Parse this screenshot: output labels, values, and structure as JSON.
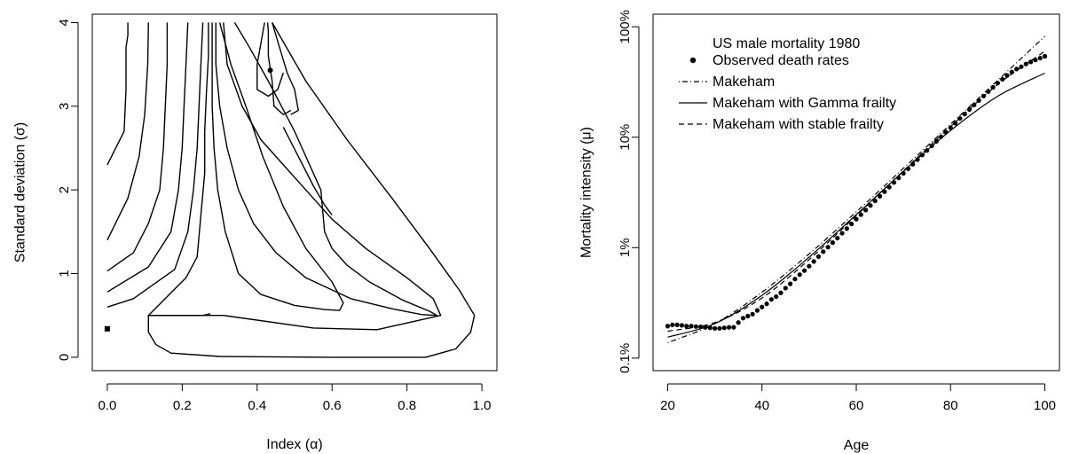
{
  "chart_data": [
    {
      "type": "contour",
      "title": "",
      "xlabel": "Index (α)",
      "ylabel": "Standard deviation (σ)",
      "xlim": [
        -0.04,
        1.04
      ],
      "ylim": [
        -0.16,
        4.1
      ],
      "x_ticks": [
        {
          "value": 0.0,
          "label": "0.0"
        },
        {
          "value": 0.2,
          "label": "0.2"
        },
        {
          "value": 0.4,
          "label": "0.4"
        },
        {
          "value": 0.6,
          "label": "0.6"
        },
        {
          "value": 0.8,
          "label": "0.8"
        },
        {
          "value": 1.0,
          "label": "1.0"
        }
      ],
      "y_ticks": [
        {
          "value": 0,
          "label": "0"
        },
        {
          "value": 1,
          "label": "1"
        },
        {
          "value": 2,
          "label": "2"
        },
        {
          "value": 3,
          "label": "3"
        },
        {
          "value": 4,
          "label": "4"
        }
      ],
      "points": [
        {
          "x": 0.435,
          "y": 3.43,
          "marker": "circle"
        },
        {
          "x": 0.0,
          "y": 0.34,
          "marker": "square"
        }
      ],
      "contours": [
        [
          [
            0.055,
            4.0
          ],
          [
            0.055,
            3.85
          ],
          [
            0.05,
            3.7
          ],
          [
            0.05,
            3.2
          ],
          [
            0.045,
            2.7
          ],
          [
            0.0,
            2.3
          ]
        ],
        [
          [
            0.11,
            4.0
          ],
          [
            0.108,
            3.5
          ],
          [
            0.1,
            2.9
          ],
          [
            0.085,
            2.4
          ],
          [
            0.055,
            1.9
          ],
          [
            0.0,
            1.4
          ]
        ],
        [
          [
            0.16,
            4.0
          ],
          [
            0.16,
            3.5
          ],
          [
            0.155,
            3.0
          ],
          [
            0.15,
            2.5
          ],
          [
            0.14,
            2.0
          ],
          [
            0.11,
            1.6
          ],
          [
            0.07,
            1.25
          ],
          [
            0.0,
            1.03
          ]
        ],
        [
          [
            0.215,
            4.0
          ],
          [
            0.21,
            3.5
          ],
          [
            0.205,
            3.0
          ],
          [
            0.2,
            2.5
          ],
          [
            0.19,
            2.0
          ],
          [
            0.17,
            1.5
          ],
          [
            0.11,
            1.08
          ],
          [
            0.0,
            0.78
          ]
        ],
        [
          [
            0.255,
            4.0
          ],
          [
            0.25,
            3.5
          ],
          [
            0.245,
            3.0
          ],
          [
            0.24,
            2.5
          ],
          [
            0.23,
            2.0
          ],
          [
            0.215,
            1.5
          ],
          [
            0.18,
            1.05
          ],
          [
            0.07,
            0.7
          ],
          [
            0.0,
            0.6
          ]
        ],
        [
          [
            0.27,
            4.0
          ],
          [
            0.27,
            3.6
          ],
          [
            0.265,
            3.2
          ],
          [
            0.26,
            2.7
          ],
          [
            0.26,
            2.2
          ],
          [
            0.25,
            1.7
          ],
          [
            0.24,
            1.2
          ],
          [
            0.21,
            0.95
          ],
          [
            0.11,
            0.5
          ],
          [
            0.255,
            0.5
          ],
          [
            0.275,
            0.52
          ]
        ],
        [
          [
            0.28,
            4.0
          ],
          [
            0.28,
            3.5
          ],
          [
            0.28,
            3.0
          ],
          [
            0.285,
            2.5
          ],
          [
            0.295,
            2.0
          ],
          [
            0.315,
            1.5
          ],
          [
            0.35,
            1.0
          ],
          [
            0.41,
            0.75
          ],
          [
            0.5,
            0.62
          ],
          [
            0.58,
            0.57
          ],
          [
            0.62,
            0.56
          ],
          [
            0.63,
            0.65
          ],
          [
            0.6,
            0.9
          ],
          [
            0.53,
            1.3
          ],
          [
            0.47,
            1.8
          ],
          [
            0.415,
            2.4
          ],
          [
            0.37,
            3.0
          ],
          [
            0.33,
            3.5
          ],
          [
            0.3,
            4.0
          ]
        ],
        [
          [
            0.29,
            4.0
          ],
          [
            0.29,
            3.5
          ],
          [
            0.3,
            3.0
          ],
          [
            0.32,
            2.5
          ],
          [
            0.35,
            2.0
          ],
          [
            0.39,
            1.6
          ],
          [
            0.45,
            1.25
          ],
          [
            0.53,
            0.95
          ],
          [
            0.65,
            0.7
          ],
          [
            0.76,
            0.58
          ],
          [
            0.84,
            0.51
          ],
          [
            0.88,
            0.5
          ],
          [
            0.86,
            0.55
          ],
          [
            0.79,
            0.68
          ],
          [
            0.7,
            0.9
          ],
          [
            0.64,
            1.1
          ],
          [
            0.6,
            1.3
          ],
          [
            0.58,
            1.5
          ],
          [
            0.57,
            2.0
          ],
          [
            0.5,
            2.7
          ],
          [
            0.43,
            3.3
          ],
          [
            0.38,
            3.7
          ],
          [
            0.34,
            4.0
          ]
        ],
        [
          [
            0.31,
            4.0
          ],
          [
            0.32,
            3.5
          ],
          [
            0.36,
            3.0
          ],
          [
            0.41,
            2.6
          ],
          [
            0.47,
            2.3
          ],
          [
            0.53,
            2.0
          ],
          [
            0.6,
            1.65
          ],
          [
            0.69,
            1.3
          ],
          [
            0.8,
            0.95
          ],
          [
            0.87,
            0.7
          ],
          [
            0.89,
            0.5
          ],
          [
            0.72,
            0.33
          ],
          [
            0.55,
            0.35
          ],
          [
            0.31,
            0.5
          ],
          [
            0.18,
            0.5
          ],
          [
            0.11,
            0.5
          ],
          [
            0.11,
            0.3
          ],
          [
            0.13,
            0.15
          ],
          [
            0.17,
            0.05
          ],
          [
            0.3,
            0.01
          ],
          [
            0.6,
            0.0
          ],
          [
            0.85,
            0.0
          ],
          [
            0.93,
            0.1
          ],
          [
            0.97,
            0.3
          ],
          [
            0.98,
            0.5
          ],
          [
            0.94,
            0.8
          ],
          [
            0.86,
            1.3
          ],
          [
            0.76,
            1.9
          ],
          [
            0.64,
            2.6
          ],
          [
            0.53,
            3.3
          ],
          [
            0.44,
            4.0
          ]
        ],
        [
          [
            0.47,
            3.4
          ],
          [
            0.455,
            3.2
          ],
          [
            0.43,
            3.12
          ],
          [
            0.4,
            3.2
          ],
          [
            0.4,
            3.5
          ],
          [
            0.41,
            3.75
          ],
          [
            0.42,
            4.0
          ]
        ],
        [
          [
            0.49,
            2.95
          ],
          [
            0.47,
            2.9
          ],
          [
            0.445,
            3.0
          ],
          [
            0.44,
            3.3
          ],
          [
            0.43,
            3.6
          ],
          [
            0.43,
            3.9
          ],
          [
            0.428,
            4.0
          ]
        ],
        [
          [
            0.44,
            4.0
          ],
          [
            0.46,
            3.7
          ],
          [
            0.48,
            3.4
          ],
          [
            0.5,
            3.2
          ],
          [
            0.51,
            2.95
          ],
          [
            0.49,
            2.9
          ]
        ],
        [
          [
            0.6,
            1.7
          ],
          [
            0.58,
            1.82
          ],
          [
            0.55,
            2.05
          ],
          [
            0.51,
            2.4
          ],
          [
            0.47,
            2.75
          ]
        ]
      ]
    },
    {
      "type": "line",
      "title": "",
      "xlabel": "Age",
      "ylabel": "Mortality intensity (μ)",
      "y_scale": "log",
      "xlim": [
        16.9,
        103.1
      ],
      "ylim": [
        0.00077,
        1.3
      ],
      "x_ticks": [
        {
          "value": 20,
          "label": "20"
        },
        {
          "value": 40,
          "label": "40"
        },
        {
          "value": 60,
          "label": "60"
        },
        {
          "value": 80,
          "label": "80"
        },
        {
          "value": 100,
          "label": "100"
        }
      ],
      "y_ticks": [
        {
          "value": 0.001,
          "label": "0.1%"
        },
        {
          "value": 0.01,
          "label": "1%"
        },
        {
          "value": 0.1,
          "label": "10%"
        },
        {
          "value": 1,
          "label": "100%"
        }
      ],
      "legend": {
        "placement": "top-left",
        "title": "US male mortality 1980",
        "entries": [
          {
            "label": "Observed death rates",
            "style": "points"
          },
          {
            "label": "Makeham",
            "style": "dotdash"
          },
          {
            "label": "Makeham with Gamma frailty",
            "style": "solid"
          },
          {
            "label": "Makeham with stable frailty",
            "style": "dashed"
          }
        ]
      },
      "observed": {
        "name": "Observed death rates",
        "x": [
          20,
          21,
          22,
          23,
          24,
          25,
          26,
          27,
          28,
          29,
          30,
          31,
          32,
          33,
          34,
          35,
          36,
          37,
          38,
          39,
          40,
          41,
          42,
          43,
          44,
          45,
          46,
          47,
          48,
          49,
          50,
          51,
          52,
          53,
          54,
          55,
          56,
          57,
          58,
          59,
          60,
          61,
          62,
          63,
          64,
          65,
          66,
          67,
          68,
          69,
          70,
          71,
          72,
          73,
          74,
          75,
          76,
          77,
          78,
          79,
          80,
          81,
          82,
          83,
          84,
          85,
          86,
          87,
          88,
          89,
          90,
          91,
          92,
          93,
          94,
          95,
          96,
          97,
          98,
          99,
          100
        ],
        "y": [
          0.00195,
          0.002,
          0.002,
          0.00198,
          0.00195,
          0.00195,
          0.00193,
          0.00192,
          0.0019,
          0.00188,
          0.00186,
          0.00186,
          0.00188,
          0.0019,
          0.0019,
          0.0021,
          0.0023,
          0.0024,
          0.0025,
          0.0027,
          0.0029,
          0.0031,
          0.0034,
          0.0036,
          0.0039,
          0.0043,
          0.0047,
          0.0052,
          0.0057,
          0.0062,
          0.0068,
          0.0075,
          0.0083,
          0.0092,
          0.0101,
          0.0111,
          0.0122,
          0.0135,
          0.0149,
          0.0164,
          0.0181,
          0.0199,
          0.0219,
          0.0241,
          0.0265,
          0.0292,
          0.0321,
          0.0353,
          0.0389,
          0.0428,
          0.0471,
          0.0518,
          0.057,
          0.0627,
          0.069,
          0.0759,
          0.0835,
          0.0918,
          0.101,
          0.111,
          0.122,
          0.134,
          0.148,
          0.162,
          0.178,
          0.196,
          0.215,
          0.236,
          0.259,
          0.283,
          0.309,
          0.335,
          0.362,
          0.389,
          0.414,
          0.435,
          0.46,
          0.48,
          0.5,
          0.52,
          0.54
        ]
      },
      "series": [
        {
          "name": "Makeham",
          "style": "dotdash",
          "x": [
            20,
            30,
            40,
            50,
            60,
            70,
            80,
            90,
            100
          ],
          "y": [
            0.00138,
            0.00205,
            0.00395,
            0.00878,
            0.0211,
            0.0523,
            0.131,
            0.327,
            0.82
          ]
        },
        {
          "name": "Makeham with Gamma frailty",
          "style": "solid",
          "x": [
            20,
            30,
            40,
            50,
            60,
            70,
            80,
            90,
            100
          ],
          "y": [
            0.00155,
            0.00205,
            0.0037,
            0.0082,
            0.0199,
            0.049,
            0.115,
            0.235,
            0.38
          ]
        },
        {
          "name": "Makeham with stable frailty",
          "style": "dashed",
          "x": [
            20,
            30,
            40,
            50,
            60,
            70,
            80,
            90,
            100
          ],
          "y": [
            0.00175,
            0.0021,
            0.0035,
            0.0078,
            0.0195,
            0.0495,
            0.125,
            0.3,
            0.6
          ]
        }
      ]
    }
  ]
}
